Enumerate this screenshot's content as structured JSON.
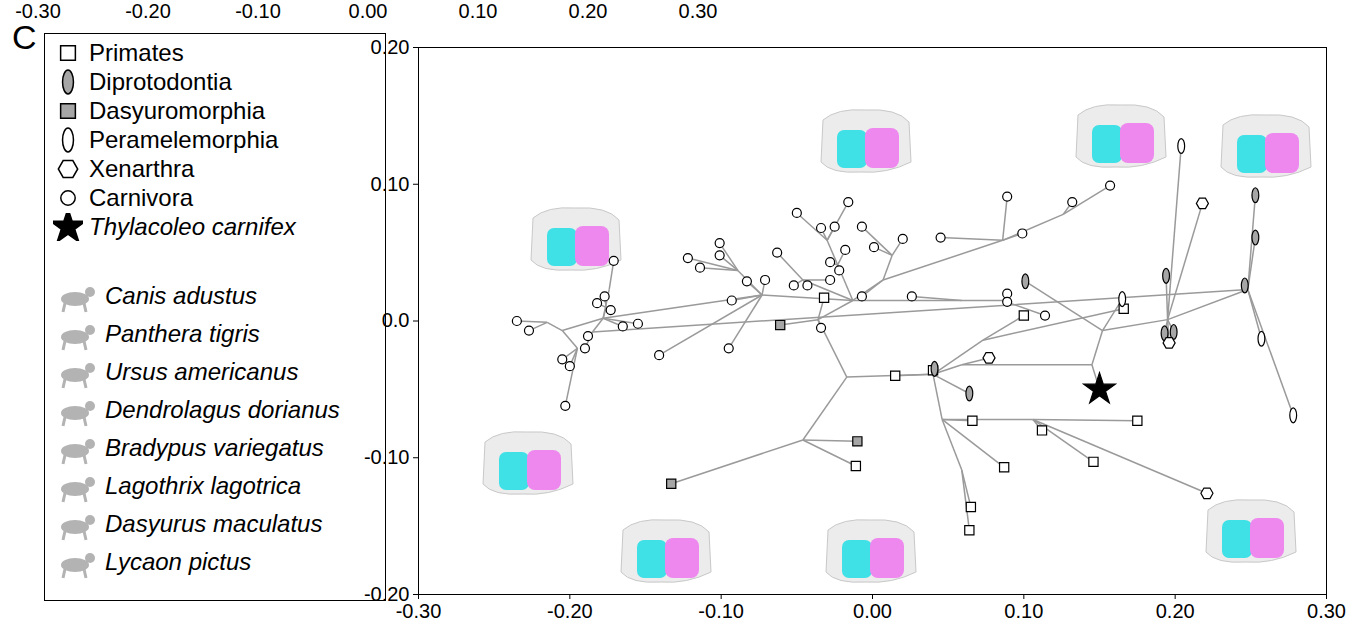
{
  "panel_label": "C",
  "top_strip_labels": [
    "-0.30",
    "-0.20",
    "-0.10",
    "0.00",
    "0.10",
    "0.20",
    "0.30"
  ],
  "chart_data": {
    "type": "scatter",
    "legend": "left",
    "xlim": [
      -0.3,
      0.3
    ],
    "ylim": [
      -0.2,
      0.2
    ],
    "xticks": [
      {
        "value": -0.3,
        "label": "-0.30"
      },
      {
        "value": -0.2,
        "label": "-0.20"
      },
      {
        "value": -0.1,
        "label": "-0.10"
      },
      {
        "value": 0,
        "label": "0.00"
      },
      {
        "value": 0.1,
        "label": "0.10"
      },
      {
        "value": 0.2,
        "label": "0.20"
      },
      {
        "value": 0.3,
        "label": "0.30"
      }
    ],
    "yticks": [
      {
        "value": -0.2,
        "label": "-0.20"
      },
      {
        "value": -0.1,
        "label": "-0.10"
      },
      {
        "value": 0,
        "label": "0.0"
      },
      {
        "value": 0.1,
        "label": "0.10"
      },
      {
        "value": 0.2,
        "label": "0.20"
      }
    ],
    "series": [
      {
        "name": "Primates",
        "marker": "square",
        "color": "#ffffff",
        "x": [
          -0.032,
          0.015,
          0.04,
          0.1,
          0.166,
          0.175,
          0.066,
          0.112,
          0.087,
          0.146,
          -0.011,
          0.065,
          0.064
        ],
        "y": [
          0.017,
          -0.04,
          -0.036,
          0.004,
          0.009,
          -0.073,
          -0.073,
          -0.08,
          -0.107,
          -0.103,
          -0.106,
          -0.136,
          -0.153
        ]
      },
      {
        "name": "Diprotodontia",
        "marker": "ellipse",
        "color": "#a6a6a6",
        "x": [
          0.101,
          0.041,
          0.064,
          0.194,
          0.193,
          0.199,
          0.253,
          0.253,
          0.246
        ],
        "y": [
          0.029,
          -0.035,
          -0.053,
          0.033,
          -0.009,
          -0.008,
          0.092,
          0.061,
          0.026
        ]
      },
      {
        "name": "Dasyuromorphia",
        "marker": "square",
        "color": "#a6a6a6",
        "x": [
          -0.061,
          -0.01,
          -0.133
        ],
        "y": [
          -0.003,
          -0.088,
          -0.119
        ]
      },
      {
        "name": "Peramelemorphia",
        "marker": "ellipse",
        "color": "#ffffff",
        "x": [
          0.204,
          0.165,
          0.257,
          0.278
        ],
        "y": [
          0.128,
          0.016,
          -0.013,
          -0.069
        ]
      },
      {
        "name": "Xenarthra",
        "marker": "hexagon",
        "color": "#ffffff",
        "x": [
          0.077,
          0.196,
          0.218,
          0.221
        ],
        "y": [
          -0.027,
          -0.016,
          0.086,
          -0.126
        ]
      },
      {
        "name": "Carnivora",
        "marker": "circle",
        "color": "#ffffff",
        "x": [
          -0.235,
          -0.227,
          -0.205,
          -0.2,
          -0.203,
          -0.171,
          -0.182,
          -0.177,
          -0.173,
          -0.165,
          -0.155,
          -0.188,
          -0.19,
          -0.141,
          -0.122,
          -0.114,
          -0.101,
          -0.101,
          -0.095,
          -0.093,
          -0.083,
          -0.071,
          -0.063,
          -0.052,
          -0.043,
          -0.05,
          -0.034,
          -0.028,
          -0.022,
          -0.025,
          -0.016,
          -0.007,
          -0.018,
          -0.028,
          -0.007,
          0.001,
          0.02,
          0.026,
          0.045,
          0.089,
          0.099,
          0.089,
          0.089,
          0.114,
          0.132,
          0.157,
          -0.034
        ],
        "y": [
          0.0,
          -0.007,
          -0.028,
          -0.033,
          -0.062,
          0.044,
          0.013,
          0.018,
          0.008,
          -0.004,
          -0.002,
          -0.011,
          -0.02,
          -0.025,
          0.046,
          0.039,
          0.057,
          0.048,
          -0.02,
          0.015,
          0.029,
          0.03,
          0.05,
          0.026,
          0.026,
          0.079,
          0.068,
          0.043,
          0.037,
          0.069,
          0.087,
          0.069,
          0.052,
          0.03,
          0.018,
          0.054,
          0.06,
          0.018,
          0.061,
          0.091,
          0.064,
          0.02,
          0.014,
          0.004,
          0.087,
          0.099,
          -0.005
        ]
      },
      {
        "name": "Thylacoleo carnifex",
        "marker": "star",
        "color": "#000000",
        "x": [
          0.15
        ],
        "y": [
          -0.05
        ]
      }
    ],
    "edges": [
      [
        -0.215,
        -0.001,
        -0.235,
        0.0
      ],
      [
        -0.215,
        -0.001,
        -0.227,
        -0.007
      ],
      [
        -0.215,
        -0.001,
        -0.205,
        -0.007
      ],
      [
        -0.195,
        -0.02,
        -0.205,
        -0.028
      ],
      [
        -0.195,
        -0.02,
        -0.2,
        -0.033
      ],
      [
        -0.195,
        -0.02,
        -0.203,
        -0.062
      ],
      [
        -0.195,
        -0.02,
        -0.205,
        -0.007
      ],
      [
        -0.205,
        -0.007,
        -0.178,
        0.002
      ],
      [
        -0.178,
        0.002,
        -0.176,
        0.01
      ],
      [
        -0.176,
        0.01,
        -0.182,
        0.013
      ],
      [
        -0.176,
        0.01,
        -0.177,
        0.018
      ],
      [
        -0.176,
        0.01,
        -0.173,
        0.008
      ],
      [
        -0.178,
        0.002,
        -0.174,
        0.023
      ],
      [
        -0.174,
        0.023,
        -0.171,
        0.044
      ],
      [
        -0.178,
        0.002,
        -0.165,
        -0.004
      ],
      [
        -0.178,
        0.002,
        -0.155,
        -0.002
      ],
      [
        -0.178,
        0.002,
        -0.185,
        -0.008
      ],
      [
        -0.185,
        -0.008,
        -0.188,
        -0.011
      ],
      [
        -0.185,
        -0.008,
        -0.19,
        -0.02
      ],
      [
        -0.178,
        0.002,
        -0.073,
        0.019
      ],
      [
        -0.185,
        -0.008,
        0.248,
        0.023
      ],
      [
        -0.073,
        0.019,
        -0.089,
        0.037
      ],
      [
        -0.089,
        0.037,
        -0.122,
        0.046
      ],
      [
        -0.089,
        0.037,
        -0.114,
        0.039
      ],
      [
        -0.089,
        0.037,
        -0.101,
        0.057
      ],
      [
        -0.089,
        0.037,
        -0.101,
        0.048
      ],
      [
        -0.073,
        0.019,
        -0.093,
        0.015
      ],
      [
        -0.073,
        0.019,
        -0.083,
        0.029
      ],
      [
        -0.073,
        0.019,
        -0.095,
        -0.02
      ],
      [
        -0.073,
        0.019,
        -0.141,
        -0.025
      ],
      [
        -0.073,
        0.019,
        -0.071,
        0.03
      ],
      [
        -0.073,
        0.019,
        -0.013,
        0.015
      ],
      [
        -0.013,
        0.015,
        -0.023,
        0.041
      ],
      [
        -0.023,
        0.041,
        -0.028,
        0.043
      ],
      [
        -0.023,
        0.041,
        -0.022,
        0.037
      ],
      [
        -0.023,
        0.041,
        -0.018,
        0.052
      ],
      [
        -0.023,
        0.041,
        -0.03,
        0.059
      ],
      [
        -0.03,
        0.059,
        -0.034,
        0.068
      ],
      [
        -0.03,
        0.059,
        -0.05,
        0.079
      ],
      [
        -0.03,
        0.059,
        -0.025,
        0.069
      ],
      [
        -0.03,
        0.059,
        -0.016,
        0.087
      ],
      [
        -0.013,
        0.015,
        -0.046,
        0.03
      ],
      [
        -0.046,
        0.03,
        -0.063,
        0.05
      ],
      [
        -0.046,
        0.03,
        -0.052,
        0.026
      ],
      [
        -0.046,
        0.03,
        -0.043,
        0.026
      ],
      [
        -0.046,
        0.03,
        -0.028,
        0.03
      ],
      [
        -0.013,
        0.015,
        0.007,
        0.03
      ],
      [
        0.007,
        0.03,
        -0.007,
        0.018
      ],
      [
        0.007,
        0.03,
        0.013,
        0.048
      ],
      [
        0.013,
        0.048,
        0.001,
        0.054
      ],
      [
        0.013,
        0.048,
        -0.007,
        0.069
      ],
      [
        0.013,
        0.048,
        0.02,
        0.06
      ],
      [
        0.007,
        0.03,
        0.086,
        0.059
      ],
      [
        0.086,
        0.059,
        0.045,
        0.061
      ],
      [
        0.086,
        0.059,
        0.089,
        0.091
      ],
      [
        0.086,
        0.059,
        0.099,
        0.064
      ],
      [
        0.086,
        0.059,
        0.126,
        0.078
      ],
      [
        0.126,
        0.078,
        0.132,
        0.087
      ],
      [
        0.126,
        0.078,
        0.157,
        0.099
      ],
      [
        -0.013,
        0.015,
        0.059,
        0.015
      ],
      [
        0.059,
        0.015,
        0.026,
        0.018
      ],
      [
        0.059,
        0.015,
        0.086,
        0.015
      ],
      [
        0.086,
        0.015,
        0.089,
        0.02
      ],
      [
        0.086,
        0.015,
        0.089,
        0.014
      ],
      [
        0.086,
        0.015,
        0.114,
        0.004
      ],
      [
        -0.013,
        0.015,
        -0.036,
        0.001
      ],
      [
        -0.036,
        0.001,
        -0.034,
        -0.005
      ],
      [
        -0.036,
        0.001,
        -0.061,
        -0.003
      ],
      [
        -0.036,
        0.001,
        -0.032,
        0.017
      ],
      [
        -0.036,
        0.001,
        -0.017,
        -0.041
      ],
      [
        -0.017,
        -0.041,
        -0.046,
        -0.087
      ],
      [
        -0.046,
        -0.087,
        -0.01,
        -0.088
      ],
      [
        -0.046,
        -0.087,
        -0.133,
        -0.119
      ],
      [
        -0.046,
        -0.087,
        -0.011,
        -0.106
      ],
      [
        -0.017,
        -0.041,
        0.04,
        -0.039
      ],
      [
        0.04,
        -0.039,
        0.015,
        -0.04
      ],
      [
        0.04,
        -0.039,
        0.041,
        -0.035
      ],
      [
        0.04,
        -0.039,
        0.059,
        -0.032
      ],
      [
        0.059,
        -0.032,
        0.077,
        -0.027
      ],
      [
        0.059,
        -0.032,
        0.145,
        -0.032
      ],
      [
        0.145,
        -0.032,
        0.15,
        -0.05
      ],
      [
        0.145,
        -0.032,
        0.152,
        -0.007
      ],
      [
        0.152,
        -0.007,
        0.101,
        0.029
      ],
      [
        0.152,
        -0.007,
        0.165,
        0.016
      ],
      [
        0.152,
        -0.007,
        0.195,
        0.001
      ],
      [
        0.195,
        0.001,
        0.193,
        -0.009
      ],
      [
        0.195,
        0.001,
        0.199,
        -0.008
      ],
      [
        0.195,
        0.001,
        0.196,
        -0.016
      ],
      [
        0.195,
        0.001,
        0.194,
        0.033
      ],
      [
        0.195,
        0.001,
        0.204,
        0.128
      ],
      [
        0.195,
        0.001,
        0.218,
        0.086
      ],
      [
        0.195,
        0.001,
        0.248,
        0.023
      ],
      [
        0.248,
        0.023,
        0.246,
        0.026
      ],
      [
        0.248,
        0.023,
        0.253,
        0.092
      ],
      [
        0.248,
        0.023,
        0.253,
        0.061
      ],
      [
        0.248,
        0.023,
        0.257,
        -0.013
      ],
      [
        0.248,
        0.023,
        0.278,
        -0.069
      ],
      [
        0.04,
        -0.039,
        0.064,
        -0.053
      ],
      [
        0.04,
        -0.039,
        0.046,
        -0.072
      ],
      [
        0.046,
        -0.072,
        0.066,
        -0.073
      ],
      [
        0.046,
        -0.072,
        0.059,
        -0.109
      ],
      [
        0.059,
        -0.109,
        0.065,
        -0.136
      ],
      [
        0.059,
        -0.109,
        0.064,
        -0.153
      ],
      [
        0.046,
        -0.072,
        0.087,
        -0.107
      ],
      [
        0.046,
        -0.072,
        0.106,
        -0.072
      ],
      [
        0.106,
        -0.072,
        0.112,
        -0.08
      ],
      [
        0.106,
        -0.072,
        0.146,
        -0.103
      ],
      [
        0.106,
        -0.072,
        0.175,
        -0.073
      ],
      [
        0.106,
        -0.072,
        0.221,
        -0.126
      ],
      [
        0.04,
        -0.039,
        0.073,
        -0.014
      ],
      [
        0.073,
        -0.014,
        0.1,
        0.004
      ],
      [
        0.073,
        -0.014,
        0.166,
        0.009
      ]
    ],
    "species": [
      "Canis adustus",
      "Panthera tigris",
      "Ursus americanus",
      "Dendrolagus dorianus",
      "Bradypus variegatus",
      "Lagothrix lagotrica",
      "Dasyurus maculatus",
      "Lycaon pictus"
    ]
  }
}
